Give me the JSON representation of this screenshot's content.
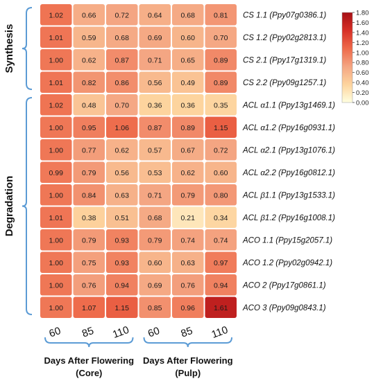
{
  "chart_data": {
    "type": "heatmap",
    "columns": [
      "60",
      "85",
      "110",
      "60",
      "85",
      "110"
    ],
    "column_groups": [
      {
        "label_line1": "Days After Flowering",
        "label_line2": "(Core)"
      },
      {
        "label_line1": "Days After Flowering",
        "label_line2": "(Pulp)"
      }
    ],
    "row_groups": [
      {
        "label": "Synthesis"
      },
      {
        "label": "Degradation"
      }
    ],
    "rows": [
      "CS 1.1 (Ppy07g0386.1)",
      "CS 1.2 (Ppy02g2813.1)",
      "CS 2.1 (Ppy17g1319.1)",
      "CS 2.2 (Ppy09g1257.1)",
      "ACL α1.1 (Ppy13g1469.1)",
      "ACL α1.2 (Ppy16g0931.1)",
      "ACL α2.1 (Ppy13g1076.1)",
      "ACL α2.2 (Ppy16g0812.1)",
      "ACL β1.1 (Ppy13g1533.1)",
      "ACL β1.2 (Ppy16g1008.1)",
      "ACO 1.1 (Ppy15g2057.1)",
      "ACO 1.2 (Ppy02g0942.1)",
      "ACO 2 (Ppy17g0861.1)",
      "ACO 3 (Ppy09g0843.1)"
    ],
    "values": [
      [
        1.02,
        0.66,
        0.72,
        0.64,
        0.68,
        0.81
      ],
      [
        1.01,
        0.59,
        0.68,
        0.69,
        0.6,
        0.7
      ],
      [
        1.0,
        0.62,
        0.87,
        0.71,
        0.65,
        0.89
      ],
      [
        1.01,
        0.82,
        0.86,
        0.56,
        0.49,
        0.89
      ],
      [
        1.02,
        0.48,
        0.7,
        0.36,
        0.36,
        0.35
      ],
      [
        1.0,
        0.95,
        1.06,
        0.87,
        0.89,
        1.15
      ],
      [
        1.0,
        0.77,
        0.62,
        0.57,
        0.67,
        0.72
      ],
      [
        0.99,
        0.79,
        0.56,
        0.53,
        0.62,
        0.6
      ],
      [
        1.0,
        0.84,
        0.63,
        0.71,
        0.79,
        0.8
      ],
      [
        1.01,
        0.38,
        0.51,
        0.68,
        0.21,
        0.34
      ],
      [
        1.0,
        0.79,
        0.93,
        0.79,
        0.74,
        0.74
      ],
      [
        1.0,
        0.75,
        0.93,
        0.6,
        0.63,
        0.97
      ],
      [
        1.0,
        0.76,
        0.94,
        0.69,
        0.76,
        0.94
      ],
      [
        1.0,
        1.07,
        1.15,
        0.85,
        0.96,
        1.61
      ]
    ],
    "colorbar": {
      "min": 0.0,
      "max": 1.8,
      "ticks": [
        "1.80",
        "1.60",
        "1.40",
        "1.20",
        "1.00",
        "0.80",
        "0.60",
        "0.40",
        "0.20",
        "0.00"
      ],
      "colors": [
        "#FFFFE0",
        "#FDD49E",
        "#F4A582",
        "#EE6A4A",
        "#D73027",
        "#A50F15"
      ]
    },
    "grid": false,
    "legend_position": "top-right"
  }
}
